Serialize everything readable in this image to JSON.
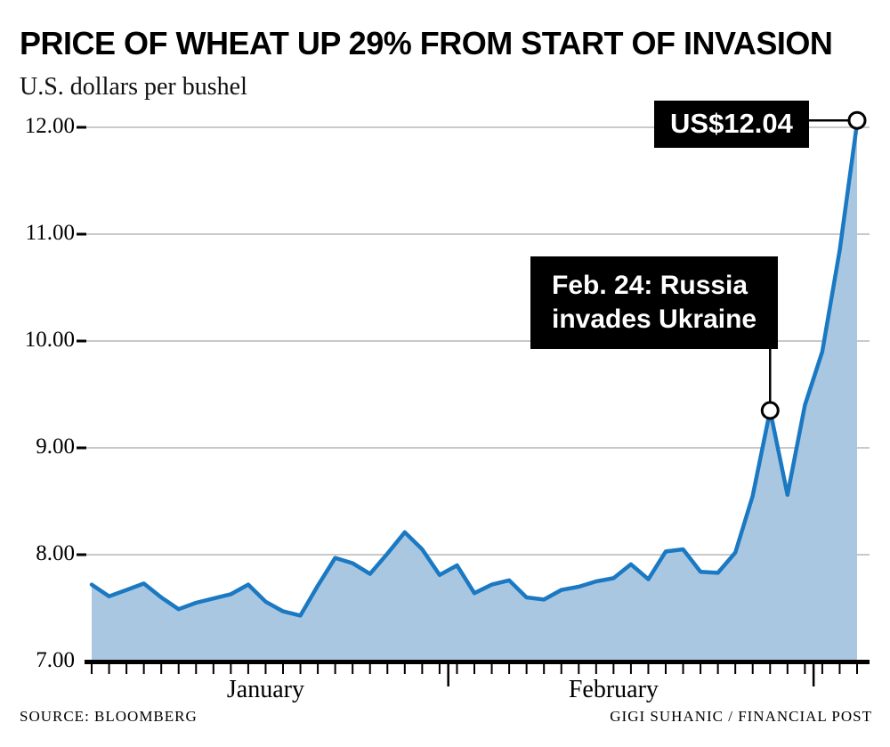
{
  "header": {
    "title": "PRICE OF WHEAT UP 29% FROM START OF INVASION",
    "subtitle": "U.S. dollars per bushel"
  },
  "annotations": {
    "price_label": "US$12.04",
    "invasion_line1": "Feb. 24: Russia",
    "invasion_line2": "invades Ukraine"
  },
  "footer": {
    "source": "SOURCE: BLOOMBERG",
    "credit": "GIGI SUHANIC / FINANCIAL POST"
  },
  "colors": {
    "line": "#1a79c2",
    "area": "#aac7e2",
    "grid": "#c9c9c9",
    "axis": "#000000",
    "annotation_bg": "#000000",
    "annotation_text": "#ffffff",
    "marker_fill": "#ffffff",
    "marker_stroke": "#000000"
  },
  "chart_data": {
    "type": "area",
    "title": "PRICE OF WHEAT UP 29% FROM START OF INVASION",
    "ylabel": "U.S. dollars per bushel",
    "ylim": [
      7.0,
      12.0
    ],
    "grid": true,
    "yticks": [
      {
        "value": 7,
        "label": "7.00"
      },
      {
        "value": 8,
        "label": "8.00"
      },
      {
        "value": 9,
        "label": "9.00"
      },
      {
        "value": 10,
        "label": "10.00"
      },
      {
        "value": 11,
        "label": "11.00"
      },
      {
        "value": 12,
        "label": "12.00"
      }
    ],
    "values": [
      7.72,
      7.61,
      7.67,
      7.73,
      7.6,
      7.49,
      7.55,
      7.59,
      7.63,
      7.72,
      7.56,
      7.47,
      7.43,
      7.71,
      7.97,
      7.92,
      7.82,
      8.01,
      8.21,
      8.05,
      7.81,
      7.9,
      7.64,
      7.72,
      7.76,
      7.6,
      7.58,
      7.67,
      7.7,
      7.75,
      7.78,
      7.91,
      7.77,
      8.03,
      8.05,
      7.84,
      7.83,
      8.02,
      8.55,
      9.35,
      8.56,
      9.4,
      9.9,
      10.85,
      12.04
    ],
    "months": [
      {
        "label": "January",
        "center_index": 10
      },
      {
        "label": "February",
        "center_index": 30
      }
    ],
    "month_boundary_indices": [
      20.5,
      41.5
    ],
    "markers": [
      {
        "name": "invasion",
        "index": 39,
        "value": 9.35,
        "label": "Feb. 24: Russia invades Ukraine"
      },
      {
        "name": "last",
        "index": 44,
        "value": 12.04,
        "label": "US$12.04"
      }
    ]
  }
}
